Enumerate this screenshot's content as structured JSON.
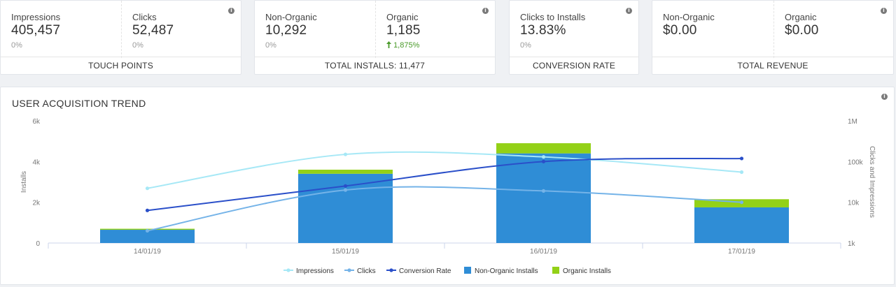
{
  "cards": [
    {
      "footer": "TOUCH POINTS",
      "metrics": [
        {
          "label": "Impressions",
          "value": "405,457",
          "sub": "0%"
        },
        {
          "label": "Clicks",
          "value": "52,487",
          "sub": "0%"
        }
      ]
    },
    {
      "footer": "TOTAL INSTALLS: 11,477",
      "metrics": [
        {
          "label": "Non-Organic",
          "value": "10,292",
          "sub": "0%"
        },
        {
          "label": "Organic",
          "value": "1,185",
          "sub": "1,875%"
        }
      ]
    },
    {
      "footer": "CONVERSION RATE",
      "metrics": [
        {
          "label": "Clicks to Installs",
          "value": "13.83%",
          "sub": "0%"
        }
      ]
    },
    {
      "footer": "TOTAL REVENUE",
      "metrics": [
        {
          "label": "Non-Organic",
          "value": "$0.00",
          "sub": ""
        },
        {
          "label": "Organic",
          "value": "$0.00",
          "sub": ""
        }
      ]
    }
  ],
  "trend": {
    "title": "USER ACQUISITION TREND"
  },
  "icons": {
    "info": "info-icon",
    "up_arrow": "up-arrow-icon"
  },
  "colors": {
    "impressions": "#a6e8f6",
    "clicks": "#74b3e8",
    "conversion": "#2a4fc9",
    "non_organic": "#2f8dd6",
    "organic": "#93d117"
  },
  "chart_data": {
    "type": "bar",
    "title": "",
    "categories": [
      "14/01/19",
      "15/01/19",
      "16/01/19",
      "17/01/19"
    ],
    "left_axis": {
      "label": "Installs",
      "ticks": [
        "0",
        "2k",
        "4k",
        "6k"
      ],
      "ylim": [
        0,
        6000
      ]
    },
    "right_axis": {
      "label": "Clicks and Impressions",
      "ticks": [
        "1k",
        "10k",
        "100k",
        "1M"
      ],
      "scale": "log",
      "ylim": [
        1000,
        1000000
      ]
    },
    "series": [
      {
        "name": "Non-Organic Installs",
        "kind": "bar",
        "axis": "left",
        "values": [
          650,
          3400,
          4400,
          1750
        ]
      },
      {
        "name": "Organic Installs",
        "kind": "bar",
        "axis": "left",
        "values": [
          50,
          200,
          500,
          400
        ]
      },
      {
        "name": "Impressions",
        "kind": "line",
        "axis": "right",
        "values": [
          22000,
          150000,
          130000,
          55000
        ]
      },
      {
        "name": "Clicks",
        "kind": "line",
        "axis": "right",
        "values": [
          2000,
          20000,
          19000,
          10000
        ]
      },
      {
        "name": "Conversion Rate",
        "kind": "line",
        "axis": "left",
        "values": [
          1600,
          2800,
          4000,
          4150
        ]
      }
    ],
    "legend": [
      "Impressions",
      "Clicks",
      "Conversion Rate",
      "Non-Organic Installs",
      "Organic Installs"
    ],
    "legend_position": "bottom",
    "grid": false
  }
}
